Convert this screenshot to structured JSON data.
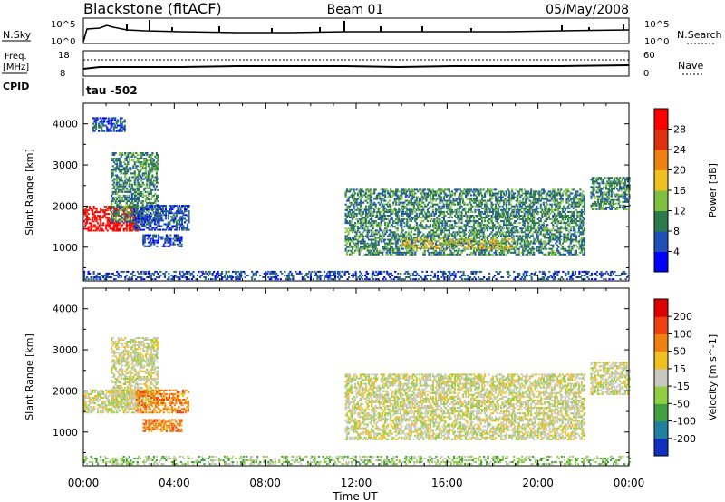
{
  "header": {
    "title": "Blackstone (fitACF)",
    "beam": "Beam 01",
    "date": "05/May/2008"
  },
  "top_panels": {
    "nsky_label": "N.Sky",
    "nsky_ticks": [
      "10^5",
      "10^0"
    ],
    "nsearch_label": "N.Search",
    "nsearch_ticks": [
      "10^5",
      "10^0"
    ],
    "freq_label": "Freq.",
    "freq_unit": "[MHz]",
    "freq_ticks": [
      "18",
      "8"
    ],
    "nave_label": "Nave",
    "nave_ticks": [
      "60",
      "0"
    ],
    "cpid_label": "CPID",
    "cpid_text": "tau -502"
  },
  "chart_data": [
    {
      "type": "heatmap",
      "ylabel": "Slant Range [km]",
      "xlabel": "Time UT",
      "xticks": [
        "00:00",
        "04:00",
        "08:00",
        "12:00",
        "16:00",
        "20:00",
        "00:00"
      ],
      "yticks": [
        1000,
        2000,
        3000,
        4000
      ],
      "xlim": [
        0,
        24
      ],
      "ylim": [
        180,
        4500
      ],
      "colorbar": {
        "label": "Power [dB]",
        "ticks": [
          "28",
          "24",
          "20",
          "16",
          "12",
          "8",
          "4"
        ],
        "colors": [
          "#0000ff",
          "#1f4fb8",
          "#2a7a4a",
          "#7fc040",
          "#f0c020",
          "#f08010",
          "#e03010",
          "#ff0000"
        ]
      },
      "regions": [
        {
          "t0": 0.0,
          "t1": 2.4,
          "r0": 1380,
          "r1": 2000,
          "level": 7
        },
        {
          "t0": 1.2,
          "t1": 3.3,
          "r0": 1600,
          "r1": 3300,
          "level": 2
        },
        {
          "t0": 2.2,
          "t1": 4.6,
          "r0": 1400,
          "r1": 2000,
          "level": 1
        },
        {
          "t0": 2.6,
          "t1": 4.3,
          "r0": 1000,
          "r1": 1300,
          "level": 1
        },
        {
          "t0": 0.4,
          "t1": 1.8,
          "r0": 3800,
          "r1": 4150,
          "level": 1
        },
        {
          "t0": 11.5,
          "t1": 22.0,
          "r0": 800,
          "r1": 2400,
          "level": 2
        },
        {
          "t0": 14.0,
          "t1": 19.0,
          "r0": 950,
          "r1": 1200,
          "level": 4
        },
        {
          "t0": 22.3,
          "t1": 24.0,
          "r0": 1900,
          "r1": 2700,
          "level": 2
        },
        {
          "t0": 0.0,
          "t1": 24.0,
          "r0": 200,
          "r1": 420,
          "level": 1
        }
      ]
    },
    {
      "type": "heatmap",
      "ylabel": "Slant Range [km]",
      "xlabel": "Time UT",
      "xticks": [
        "00:00",
        "04:00",
        "08:00",
        "12:00",
        "16:00",
        "20:00",
        "00:00"
      ],
      "yticks": [
        1000,
        2000,
        3000,
        4000
      ],
      "xlim": [
        0,
        24
      ],
      "ylim": [
        180,
        4500
      ],
      "colorbar": {
        "label": "Velocity [m s^-1]",
        "ticks": [
          "200",
          "100",
          "50",
          "15",
          "-15",
          "-50",
          "-100",
          "-200"
        ],
        "colors": [
          "#1030c0",
          "#2080a0",
          "#40a040",
          "#90d040",
          "#c8c8c0",
          "#f0c020",
          "#f08010",
          "#f04010",
          "#e00000"
        ]
      },
      "regions": [
        {
          "t0": 0.0,
          "t1": 2.4,
          "r0": 1450,
          "r1": 2000,
          "level": 4
        },
        {
          "t0": 1.2,
          "t1": 3.3,
          "r0": 1600,
          "r1": 3300,
          "level": 4
        },
        {
          "t0": 2.3,
          "t1": 4.6,
          "r0": 1450,
          "r1": 2000,
          "level": 6
        },
        {
          "t0": 2.6,
          "t1": 4.3,
          "r0": 1000,
          "r1": 1300,
          "level": 6
        },
        {
          "t0": 11.5,
          "t1": 22.0,
          "r0": 800,
          "r1": 2400,
          "level": 4
        },
        {
          "t0": 22.3,
          "t1": 24.0,
          "r0": 1900,
          "r1": 2700,
          "level": 4
        },
        {
          "t0": 0.0,
          "t1": 24.0,
          "r0": 200,
          "r1": 420,
          "level": 3
        }
      ]
    }
  ]
}
